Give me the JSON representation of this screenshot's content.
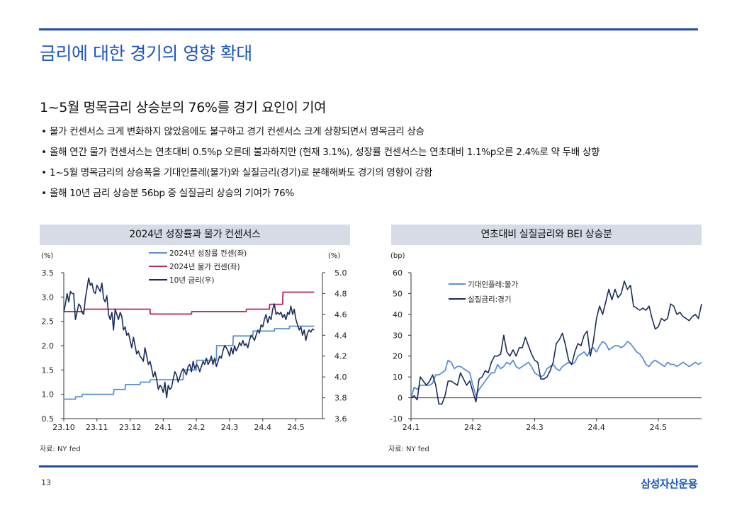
{
  "page": {
    "title": "금리에 대한 경기의 영향 확대",
    "subtitle": "1~5월 명목금리 상승분의 76%를 경기 요인이 기여",
    "bullets": [
      "물가 컨센서스 크게 변화하지 않았음에도 불구하고 경기 컨센서스 크게 상향되면서 명목금리 상승",
      "올해 연간 물가 컨센서스는 연초대비 0.5%p 오른데 불과하지만 (현재 3.1%), 성장률 컨센서스는 연초대비 1.1%p오른 2.4%로 약 두배 상향",
      "1~5월 명목금리의 상승폭을 기대인플레(물가)와 실질금리(경기)로 분해해봐도 경기의 영향이 강함",
      "올해 10년 금리 상승분 56bp 중 실질금리 상승의 기여가 76%"
    ],
    "bullet_marker": "•",
    "page_number": "13",
    "company": "삼성자산운용"
  },
  "chart_data": [
    {
      "type": "line",
      "title": "2024년 성장률과 물가 컨센서스",
      "left_unit": "(%)",
      "right_unit": "(%)",
      "source": "자료: NY fed",
      "legend_position": "top-center",
      "x_ticks": [
        "23.10",
        "23.11",
        "23.12",
        "24.1",
        "24.2",
        "24.3",
        "24.4",
        "24.5"
      ],
      "x_range": [
        0,
        7.8
      ],
      "left_axis": {
        "range": [
          0.5,
          3.5
        ],
        "ticks": [
          "0.5",
          "1.0",
          "1.5",
          "2.0",
          "2.5",
          "3.0",
          "3.5"
        ]
      },
      "right_axis": {
        "range": [
          3.6,
          5.0
        ],
        "ticks": [
          "3.6",
          "3.8",
          "4.0",
          "4.2",
          "4.4",
          "4.6",
          "4.8",
          "5.0"
        ]
      },
      "series": [
        {
          "name": "2024년 성장률 컨센(좌)",
          "axis": "left",
          "color": "#5b8fd6",
          "x": [
            0,
            0.35,
            0.36,
            0.55,
            0.56,
            1.5,
            1.51,
            1.85,
            1.86,
            2.3,
            2.31,
            2.6,
            2.61,
            3.6,
            3.61,
            4.0,
            4.01,
            4.6,
            4.61,
            5.1,
            5.11,
            5.7,
            5.71,
            6.35,
            6.36,
            6.8,
            6.81,
            7.55
          ],
          "values": [
            0.9,
            0.9,
            0.95,
            0.95,
            1.0,
            1.0,
            1.1,
            1.1,
            1.2,
            1.2,
            1.25,
            1.25,
            1.3,
            1.3,
            1.5,
            1.5,
            1.7,
            1.7,
            2.0,
            2.0,
            2.2,
            2.2,
            2.3,
            2.3,
            2.35,
            2.35,
            2.4,
            2.4
          ]
        },
        {
          "name": "2024년 물가 컨센(좌)",
          "axis": "left",
          "color": "#b5285d",
          "x": [
            0,
            0.6,
            0.61,
            2.6,
            2.61,
            3.85,
            3.86,
            5.5,
            5.51,
            6.2,
            6.21,
            6.6,
            6.61,
            7.55
          ],
          "values": [
            2.7,
            2.7,
            2.75,
            2.75,
            2.65,
            2.65,
            2.7,
            2.7,
            2.75,
            2.75,
            2.85,
            2.85,
            3.1,
            3.1
          ]
        },
        {
          "name": "10년 금리(우)",
          "axis": "right",
          "color": "#1b2c5c",
          "x": [
            0,
            0.05,
            0.1,
            0.15,
            0.2,
            0.25,
            0.3,
            0.35,
            0.4,
            0.45,
            0.5,
            0.55,
            0.6,
            0.65,
            0.7,
            0.75,
            0.8,
            0.85,
            0.9,
            0.95,
            1.0,
            1.05,
            1.1,
            1.15,
            1.2,
            1.25,
            1.3,
            1.35,
            1.4,
            1.45,
            1.5,
            1.55,
            1.6,
            1.65,
            1.7,
            1.75,
            1.8,
            1.85,
            1.9,
            1.95,
            2.0,
            2.05,
            2.1,
            2.15,
            2.2,
            2.25,
            2.3,
            2.35,
            2.4,
            2.45,
            2.5,
            2.55,
            2.6,
            2.65,
            2.7,
            2.75,
            2.8,
            2.85,
            2.9,
            2.95,
            3.0,
            3.05,
            3.1,
            3.15,
            3.2,
            3.25,
            3.3,
            3.35,
            3.4,
            3.45,
            3.5,
            3.55,
            3.6,
            3.65,
            3.7,
            3.75,
            3.8,
            3.85,
            3.9,
            3.95,
            4.0,
            4.05,
            4.1,
            4.15,
            4.2,
            4.25,
            4.3,
            4.35,
            4.4,
            4.45,
            4.5,
            4.55,
            4.6,
            4.65,
            4.7,
            4.75,
            4.8,
            4.85,
            4.9,
            4.95,
            5.0,
            5.05,
            5.1,
            5.15,
            5.2,
            5.25,
            5.3,
            5.35,
            5.4,
            5.45,
            5.5,
            5.55,
            5.6,
            5.65,
            5.7,
            5.75,
            5.8,
            5.85,
            5.9,
            5.95,
            6.0,
            6.05,
            6.1,
            6.15,
            6.2,
            6.25,
            6.3,
            6.35,
            6.4,
            6.45,
            6.5,
            6.55,
            6.6,
            6.65,
            6.7,
            6.75,
            6.8,
            6.85,
            6.9,
            6.95,
            7.0,
            7.05,
            7.1,
            7.15,
            7.2,
            7.25,
            7.3,
            7.35,
            7.4,
            7.45,
            7.5,
            7.55
          ],
          "values": [
            4.62,
            4.7,
            4.8,
            4.72,
            4.82,
            4.8,
            4.8,
            4.55,
            4.62,
            4.7,
            4.68,
            4.62,
            4.6,
            4.75,
            4.85,
            4.95,
            4.88,
            4.9,
            4.82,
            4.8,
            4.88,
            4.85,
            4.82,
            4.9,
            4.75,
            4.72,
            4.78,
            4.6,
            4.55,
            4.62,
            4.45,
            4.65,
            4.6,
            4.55,
            4.62,
            4.58,
            4.45,
            4.48,
            4.4,
            4.42,
            4.35,
            4.28,
            4.38,
            4.3,
            4.22,
            4.25,
            4.2,
            4.18,
            4.15,
            4.28,
            4.2,
            4.12,
            4.15,
            4.08,
            4.0,
            4.05,
            3.98,
            3.88,
            3.92,
            3.9,
            3.85,
            3.95,
            3.8,
            3.92,
            3.88,
            3.9,
            3.98,
            4.05,
            4.02,
            3.95,
            4.0,
            4.05,
            4.08,
            4.05,
            4.02,
            4.1,
            4.12,
            4.05,
            4.15,
            4.08,
            4.12,
            4.1,
            4.05,
            4.1,
            4.15,
            4.12,
            4.18,
            4.12,
            4.15,
            4.2,
            4.12,
            4.18,
            4.1,
            4.15,
            4.2,
            4.18,
            4.25,
            4.3,
            4.28,
            4.25,
            4.2,
            4.28,
            4.22,
            4.3,
            4.25,
            4.28,
            4.33,
            4.3,
            4.35,
            4.3,
            4.32,
            4.28,
            4.35,
            4.4,
            4.38,
            4.35,
            4.4,
            4.45,
            4.42,
            4.5,
            4.48,
            4.55,
            4.6,
            4.52,
            4.58,
            4.55,
            4.65,
            4.7,
            4.6,
            4.62,
            4.6,
            4.62,
            4.57,
            4.6,
            4.55,
            4.62,
            4.6,
            4.68,
            4.6,
            4.65,
            4.55,
            4.5,
            4.45,
            4.48,
            4.4,
            4.45,
            4.35,
            4.42,
            4.45,
            4.43,
            4.46,
            4.45
          ]
        }
      ]
    },
    {
      "type": "line",
      "title": "연초대비 실질금리와 BEI 상승분",
      "left_unit": "(bp)",
      "source": "자료: NY fed",
      "legend_position": "top-left",
      "x_ticks": [
        "24.1",
        "24.2",
        "24.3",
        "24.4",
        "24.5"
      ],
      "x_range": [
        0,
        4.7
      ],
      "y_axis": {
        "range": [
          -10,
          60
        ],
        "ticks": [
          "-10",
          "0",
          "10",
          "20",
          "30",
          "40",
          "50",
          "60"
        ]
      },
      "series": [
        {
          "name": "기대인플레:물가",
          "color": "#5b8fd6",
          "x": [
            0,
            0.05,
            0.1,
            0.15,
            0.2,
            0.25,
            0.3,
            0.35,
            0.4,
            0.45,
            0.5,
            0.55,
            0.6,
            0.65,
            0.7,
            0.75,
            0.8,
            0.85,
            0.9,
            0.95,
            1.0,
            1.05,
            1.1,
            1.15,
            1.2,
            1.25,
            1.3,
            1.35,
            1.4,
            1.45,
            1.5,
            1.55,
            1.6,
            1.65,
            1.7,
            1.75,
            1.8,
            1.85,
            1.9,
            1.95,
            2.0,
            2.05,
            2.1,
            2.15,
            2.2,
            2.25,
            2.3,
            2.35,
            2.4,
            2.45,
            2.5,
            2.55,
            2.6,
            2.65,
            2.7,
            2.75,
            2.8,
            2.85,
            2.9,
            2.95,
            3.0,
            3.05,
            3.1,
            3.15,
            3.2,
            3.25,
            3.3,
            3.35,
            3.4,
            3.45,
            3.5,
            3.55,
            3.6,
            3.65,
            3.7,
            3.75,
            3.8,
            3.85,
            3.9,
            3.95,
            4.0,
            4.05,
            4.1,
            4.15,
            4.2,
            4.25,
            4.3,
            4.35,
            4.4,
            4.45,
            4.5,
            4.55,
            4.6,
            4.65,
            4.7
          ],
          "values": [
            0,
            5,
            4,
            6,
            6,
            6,
            6,
            7,
            11,
            11,
            12,
            13,
            18,
            17,
            14,
            15,
            15,
            14,
            13,
            12,
            6,
            1,
            4,
            6,
            8,
            10,
            12,
            12,
            16,
            14,
            15,
            17,
            16,
            18,
            15,
            14,
            15,
            16,
            17,
            15,
            12,
            11,
            10,
            11,
            14,
            15,
            16,
            14,
            13,
            15,
            16,
            17,
            16,
            17,
            20,
            21,
            22,
            20,
            23,
            24,
            22,
            25,
            27,
            26,
            23,
            24,
            25,
            25,
            24,
            25,
            27,
            26,
            24,
            22,
            21,
            19,
            16,
            15,
            17,
            18,
            17,
            16,
            15,
            17,
            16,
            16,
            15,
            16,
            17,
            16,
            15,
            16,
            17,
            16,
            17
          ]
        },
        {
          "name": "실질금리:경기",
          "color": "#1b2c5c",
          "x": [
            0,
            0.05,
            0.1,
            0.15,
            0.2,
            0.25,
            0.3,
            0.35,
            0.4,
            0.45,
            0.5,
            0.55,
            0.6,
            0.65,
            0.7,
            0.75,
            0.8,
            0.85,
            0.9,
            0.95,
            1.0,
            1.05,
            1.1,
            1.15,
            1.2,
            1.25,
            1.3,
            1.35,
            1.4,
            1.45,
            1.5,
            1.55,
            1.6,
            1.65,
            1.7,
            1.75,
            1.8,
            1.85,
            1.9,
            1.95,
            2.0,
            2.05,
            2.1,
            2.15,
            2.2,
            2.25,
            2.3,
            2.35,
            2.4,
            2.45,
            2.5,
            2.55,
            2.6,
            2.65,
            2.7,
            2.75,
            2.8,
            2.85,
            2.9,
            2.95,
            3.0,
            3.05,
            3.1,
            3.15,
            3.2,
            3.25,
            3.3,
            3.35,
            3.4,
            3.45,
            3.5,
            3.55,
            3.6,
            3.65,
            3.7,
            3.75,
            3.8,
            3.85,
            3.9,
            3.95,
            4.0,
            4.05,
            4.1,
            4.15,
            4.2,
            4.25,
            4.3,
            4.35,
            4.4,
            4.45,
            4.5,
            4.55,
            4.6,
            4.65,
            4.7
          ],
          "values": [
            0,
            1,
            -1,
            10,
            8,
            6,
            8,
            11,
            6,
            -3,
            -3,
            1,
            8,
            8,
            7,
            6,
            12,
            9,
            6,
            8,
            3,
            -2,
            9,
            10,
            13,
            12,
            17,
            20,
            20,
            21,
            30,
            22,
            20,
            23,
            20,
            24,
            24,
            29,
            25,
            21,
            18,
            17,
            9,
            9,
            10,
            13,
            17,
            26,
            28,
            31,
            25,
            18,
            16,
            22,
            26,
            25,
            30,
            32,
            20,
            27,
            38,
            44,
            40,
            46,
            52,
            47,
            52,
            48,
            50,
            56,
            52,
            54,
            44,
            43,
            42,
            43,
            42,
            44,
            38,
            33,
            34,
            38,
            37,
            38,
            45,
            44,
            40,
            41,
            39,
            38,
            37,
            39,
            40,
            38,
            45
          ]
        }
      ]
    }
  ]
}
